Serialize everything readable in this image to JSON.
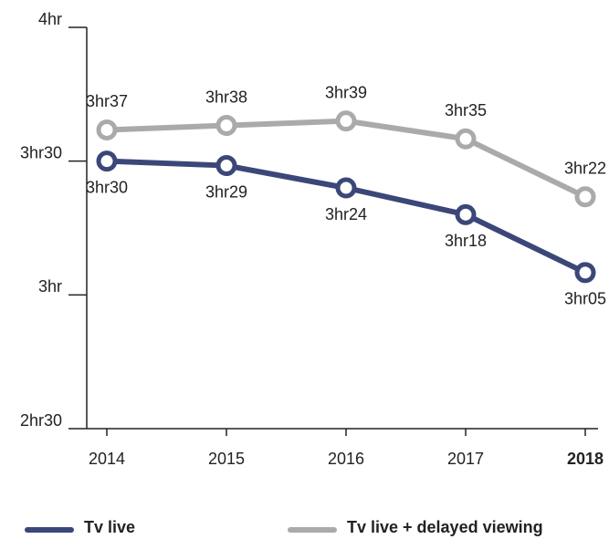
{
  "chart_data": {
    "type": "line",
    "categories": [
      "2014",
      "2015",
      "2016",
      "2017",
      "2018"
    ],
    "series": [
      {
        "name": "Tv live",
        "color": "#3b4778",
        "values": [
          210,
          209,
          204,
          198,
          185
        ],
        "value_labels": [
          "3hr30",
          "3hr29",
          "3hr24",
          "3hr18",
          "3hr05"
        ]
      },
      {
        "name": "Tv live + delayed viewing",
        "color": "#aaaaaa",
        "values": [
          217,
          218,
          219,
          215,
          202
        ],
        "value_labels": [
          "3hr37",
          "3hr38",
          "3hr39",
          "3hr35",
          "3hr22"
        ]
      }
    ],
    "ylim": [
      150,
      240
    ],
    "yticks": [
      {
        "value": 150,
        "label": "2hr30"
      },
      {
        "value": 180,
        "label": "3hr"
      },
      {
        "value": 210,
        "label": "3hr30"
      },
      {
        "value": 240,
        "label": "4hr"
      }
    ],
    "legend": "bottom"
  }
}
